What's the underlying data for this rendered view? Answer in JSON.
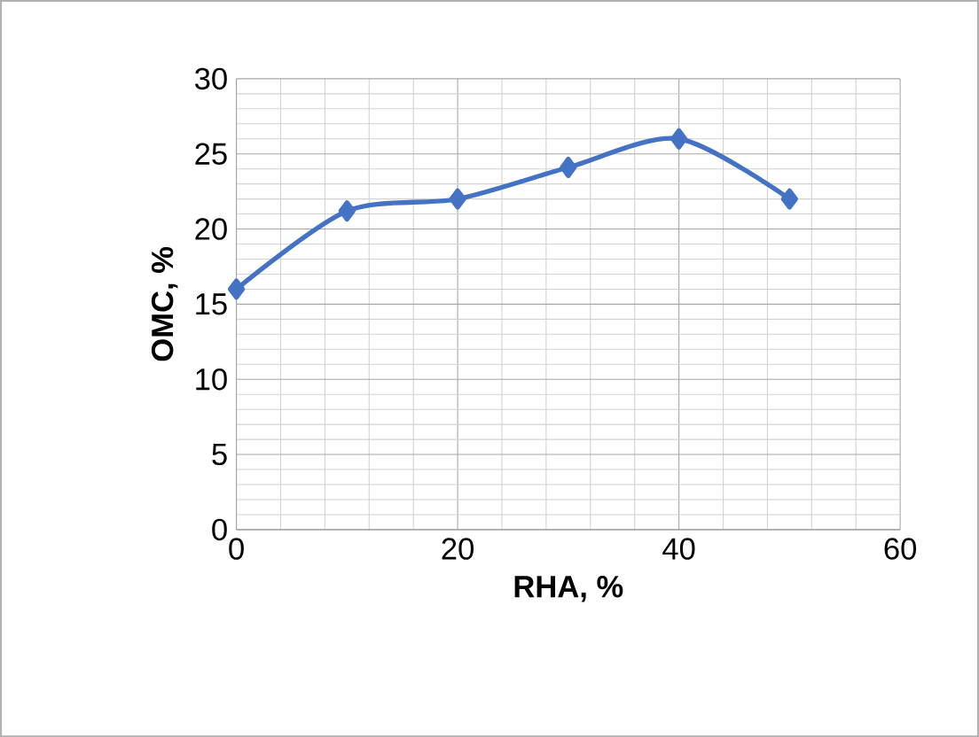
{
  "chart_data": {
    "type": "line",
    "xlabel": "RHA, %",
    "ylabel": "OMC, %",
    "x": [
      0,
      10,
      20,
      30,
      40,
      50
    ],
    "series": [
      {
        "color": "#4472c4",
        "values": [
          16,
          21.2,
          22,
          24.1,
          26,
          22
        ]
      }
    ],
    "xlim": [
      0,
      60
    ],
    "xticks": [
      0,
      20,
      40,
      60
    ],
    "ylim": [
      0,
      30
    ],
    "yticks": [
      0,
      5,
      10,
      15,
      20,
      25,
      30
    ],
    "grid": true,
    "marker": "diamond",
    "line_style": "solid"
  }
}
